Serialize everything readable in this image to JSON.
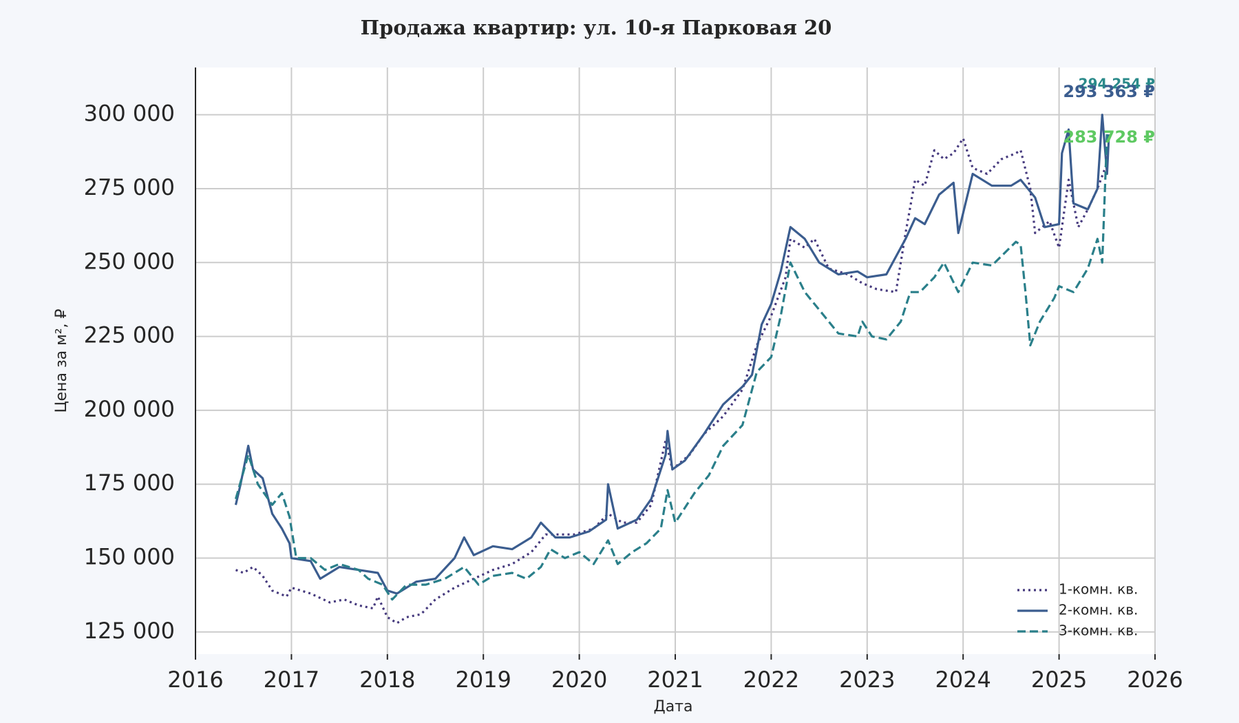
{
  "chart_data": {
    "type": "line",
    "title": "Продажа квартир: ул. 10-я Парковая 20",
    "x_label": "Дата",
    "y_label": "Цена за м², ₽",
    "xlim": [
      2016,
      2026
    ],
    "xticks": [
      2016,
      2017,
      2018,
      2019,
      2020,
      2021,
      2022,
      2023,
      2024,
      2025,
      2026
    ],
    "ylim": [
      117500,
      316000
    ],
    "yticks": [
      {
        "value": 125000,
        "label": "125 000"
      },
      {
        "value": 150000,
        "label": "150 000"
      },
      {
        "value": 175000,
        "label": "175 000"
      },
      {
        "value": 200000,
        "label": "200 000"
      },
      {
        "value": 225000,
        "label": "225 000"
      },
      {
        "value": 250000,
        "label": "250 000"
      },
      {
        "value": 275000,
        "label": "275 000"
      },
      {
        "value": 300000,
        "label": "300 000"
      }
    ],
    "grid": true,
    "legend": "lower right",
    "series": [
      {
        "name": "1-комн. кв.",
        "color": "#463a7e",
        "dash": "dotted",
        "x": [
          2016.42,
          2016.5,
          2016.6,
          2016.7,
          2016.8,
          2016.95,
          2017.0,
          2017.2,
          2017.4,
          2017.55,
          2017.7,
          2017.85,
          2017.9,
          2018.0,
          2018.1,
          2018.2,
          2018.35,
          2018.5,
          2018.7,
          2018.9,
          2019.1,
          2019.3,
          2019.5,
          2019.65,
          2019.8,
          2019.95,
          2020.15,
          2020.3,
          2020.45,
          2020.6,
          2020.75,
          2020.9,
          2020.97,
          2021.15,
          2021.3,
          2021.5,
          2021.7,
          2021.85,
          2022.0,
          2022.15,
          2022.2,
          2022.35,
          2022.45,
          2022.6,
          2022.8,
          2022.95,
          2023.1,
          2023.3,
          2023.4,
          2023.5,
          2023.6,
          2023.7,
          2023.8,
          2023.9,
          2024.0,
          2024.1,
          2024.25,
          2024.4,
          2024.55,
          2024.6,
          2024.7,
          2024.75,
          2024.9,
          2025.0,
          2025.1,
          2025.2,
          2025.3,
          2025.4,
          2025.5
        ],
        "values": [
          146000,
          145000,
          147000,
          144000,
          139000,
          137000,
          140000,
          138000,
          135000,
          136000,
          134000,
          133000,
          137000,
          130000,
          128000,
          130000,
          131000,
          136000,
          140000,
          143000,
          146000,
          148000,
          152000,
          158000,
          158000,
          158000,
          160000,
          165000,
          162000,
          162000,
          168000,
          190000,
          180000,
          185000,
          192000,
          198000,
          207000,
          222000,
          232000,
          245000,
          258000,
          255000,
          258000,
          248000,
          246000,
          243000,
          241000,
          240000,
          260000,
          278000,
          276000,
          288000,
          285000,
          287000,
          292000,
          282000,
          280000,
          285000,
          287000,
          288000,
          275000,
          260000,
          264000,
          255000,
          278000,
          262000,
          268000,
          275000,
          283728
        ]
      },
      {
        "name": "2-комн. кв.",
        "color": "#3b5d8f",
        "dash": "solid",
        "x": [
          2016.42,
          2016.47,
          2016.55,
          2016.6,
          2016.7,
          2016.8,
          2016.9,
          2016.98,
          2017.0,
          2017.2,
          2017.3,
          2017.5,
          2017.7,
          2017.9,
          2018.0,
          2018.1,
          2018.3,
          2018.5,
          2018.7,
          2018.8,
          2018.9,
          2019.1,
          2019.3,
          2019.5,
          2019.6,
          2019.75,
          2019.9,
          2020.1,
          2020.28,
          2020.3,
          2020.4,
          2020.6,
          2020.75,
          2020.9,
          2020.92,
          2020.97,
          2021.1,
          2021.3,
          2021.5,
          2021.7,
          2021.8,
          2021.9,
          2022.0,
          2022.1,
          2022.2,
          2022.35,
          2022.5,
          2022.7,
          2022.9,
          2023.0,
          2023.2,
          2023.3,
          2023.4,
          2023.5,
          2023.6,
          2023.75,
          2023.9,
          2023.95,
          2024.1,
          2024.3,
          2024.5,
          2024.6,
          2024.75,
          2024.85,
          2025.0,
          2025.03,
          2025.1,
          2025.15,
          2025.3,
          2025.4,
          2025.45,
          2025.5,
          2025.52
        ],
        "values": [
          168000,
          175000,
          188000,
          180000,
          177000,
          165000,
          160000,
          155000,
          150000,
          149000,
          143000,
          147000,
          146000,
          145000,
          139000,
          138000,
          142000,
          143000,
          150000,
          157000,
          151000,
          154000,
          153000,
          157000,
          162000,
          157000,
          157000,
          159000,
          163000,
          175000,
          160000,
          163000,
          170000,
          185000,
          193000,
          180000,
          183000,
          192000,
          202000,
          208000,
          212000,
          229000,
          236000,
          247000,
          262000,
          258000,
          250000,
          246000,
          247000,
          245000,
          246000,
          252000,
          258000,
          265000,
          263000,
          273000,
          277000,
          260000,
          280000,
          276000,
          276000,
          278000,
          272000,
          262000,
          263000,
          287000,
          295000,
          270000,
          268000,
          275000,
          300000,
          280000,
          293363
        ]
      },
      {
        "name": "3-комн. кв.",
        "color": "#2a7f8a",
        "dash": "dashed",
        "x": [
          2016.42,
          2016.55,
          2016.65,
          2016.8,
          2016.9,
          2016.98,
          2017.05,
          2017.2,
          2017.35,
          2017.5,
          2017.7,
          2017.8,
          2017.95,
          2018.05,
          2018.2,
          2018.4,
          2018.6,
          2018.8,
          2018.95,
          2019.1,
          2019.3,
          2019.45,
          2019.6,
          2019.7,
          2019.85,
          2020.0,
          2020.15,
          2020.3,
          2020.4,
          2020.55,
          2020.7,
          2020.85,
          2020.92,
          2021.0,
          2021.2,
          2021.35,
          2021.5,
          2021.7,
          2021.85,
          2022.0,
          2022.1,
          2022.2,
          2022.35,
          2022.55,
          2022.7,
          2022.9,
          2022.95,
          2023.05,
          2023.2,
          2023.35,
          2023.45,
          2023.55,
          2023.7,
          2023.8,
          2023.95,
          2024.1,
          2024.3,
          2024.55,
          2024.6,
          2024.65,
          2024.7,
          2024.8,
          2024.95,
          2025.0,
          2025.15,
          2025.3,
          2025.4,
          2025.45,
          2025.5
        ],
        "values": [
          170000,
          185000,
          175000,
          168000,
          172000,
          164000,
          150000,
          150000,
          146000,
          148000,
          146000,
          143000,
          141000,
          136000,
          141000,
          141000,
          143000,
          147000,
          141000,
          144000,
          145000,
          143000,
          147000,
          153000,
          150000,
          152000,
          148000,
          156000,
          148000,
          152000,
          155000,
          160000,
          173000,
          162000,
          172000,
          178000,
          188000,
          195000,
          213000,
          218000,
          232000,
          250000,
          240000,
          232000,
          226000,
          225000,
          230000,
          225000,
          224000,
          230000,
          240000,
          240000,
          245000,
          250000,
          240000,
          250000,
          249000,
          257000,
          256000,
          240000,
          222000,
          230000,
          238000,
          242000,
          240000,
          248000,
          258000,
          250000,
          294254
        ]
      }
    ],
    "annotations": [
      {
        "text": "294 254 ₽",
        "color": "#2a8a8a"
      },
      {
        "text": "293 363 ₽",
        "color": "#3b5d8f"
      },
      {
        "text": "283 728 ₽",
        "color": "#5ec962"
      }
    ]
  }
}
